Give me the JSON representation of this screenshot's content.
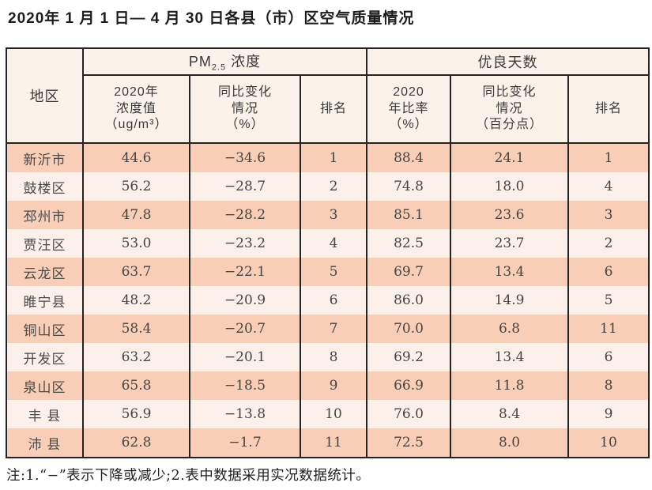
{
  "title": "2020年 1 月 1 日— 4 月 30 日各县（市）区空气质量情况",
  "table": {
    "region_header": "地区",
    "groups": [
      {
        "prefix": "PM",
        "sub": "2.5",
        "suffix": " 浓度"
      },
      {
        "label": "优良天数"
      }
    ],
    "subheaders": {
      "pm_value": [
        "2020年",
        "浓度值",
        "（ug/m³）"
      ],
      "pm_change": [
        "同比变化",
        "情况",
        "（%）"
      ],
      "pm_rank": "排名",
      "good_ratio": [
        "2020",
        "年比率",
        "（%）"
      ],
      "good_change": [
        "同比变化",
        "情况",
        "（百分点）"
      ],
      "good_rank": "排名"
    },
    "rows": [
      {
        "region": "新沂市",
        "pm_value": "44.6",
        "pm_change": "−34.6",
        "pm_rank": "1",
        "good_ratio": "88.4",
        "good_change": "24.1",
        "good_rank": "1"
      },
      {
        "region": "鼓楼区",
        "pm_value": "56.2",
        "pm_change": "−28.7",
        "pm_rank": "2",
        "good_ratio": "74.8",
        "good_change": "18.0",
        "good_rank": "4"
      },
      {
        "region": "邳州市",
        "pm_value": "47.8",
        "pm_change": "−28.2",
        "pm_rank": "3",
        "good_ratio": "85.1",
        "good_change": "23.6",
        "good_rank": "3"
      },
      {
        "region": "贾汪区",
        "pm_value": "53.0",
        "pm_change": "−23.2",
        "pm_rank": "4",
        "good_ratio": "82.5",
        "good_change": "23.7",
        "good_rank": "2"
      },
      {
        "region": "云龙区",
        "pm_value": "63.7",
        "pm_change": "−22.1",
        "pm_rank": "5",
        "good_ratio": "69.7",
        "good_change": "13.4",
        "good_rank": "6"
      },
      {
        "region": "睢宁县",
        "pm_value": "48.2",
        "pm_change": "−20.9",
        "pm_rank": "6",
        "good_ratio": "86.0",
        "good_change": "14.9",
        "good_rank": "5"
      },
      {
        "region": "铜山区",
        "pm_value": "58.4",
        "pm_change": "−20.7",
        "pm_rank": "7",
        "good_ratio": "70.0",
        "good_change": "6.8",
        "good_rank": "11"
      },
      {
        "region": "开发区",
        "pm_value": "63.2",
        "pm_change": "−20.1",
        "pm_rank": "8",
        "good_ratio": "69.2",
        "good_change": "13.4",
        "good_rank": "6"
      },
      {
        "region": "泉山区",
        "pm_value": "65.8",
        "pm_change": "−18.5",
        "pm_rank": "9",
        "good_ratio": "66.9",
        "good_change": "11.8",
        "good_rank": "8"
      },
      {
        "region": "丰 县",
        "pm_value": "56.9",
        "pm_change": "−13.8",
        "pm_rank": "10",
        "good_ratio": "76.0",
        "good_change": "8.4",
        "good_rank": "9"
      },
      {
        "region": "沛 县",
        "pm_value": "62.8",
        "pm_change": "−1.7",
        "pm_rank": "11",
        "good_ratio": "72.5",
        "good_change": "8.0",
        "good_rank": "10"
      }
    ]
  },
  "note": "注:1.“−”表示下降或减少;2.表中数据采用实况数据统计。",
  "colors": {
    "row_salmon": "#f8cfb6",
    "row_light": "#fcf1ea",
    "header_cream": "#fbf2e9",
    "border": "#242424",
    "text": "#454545"
  }
}
